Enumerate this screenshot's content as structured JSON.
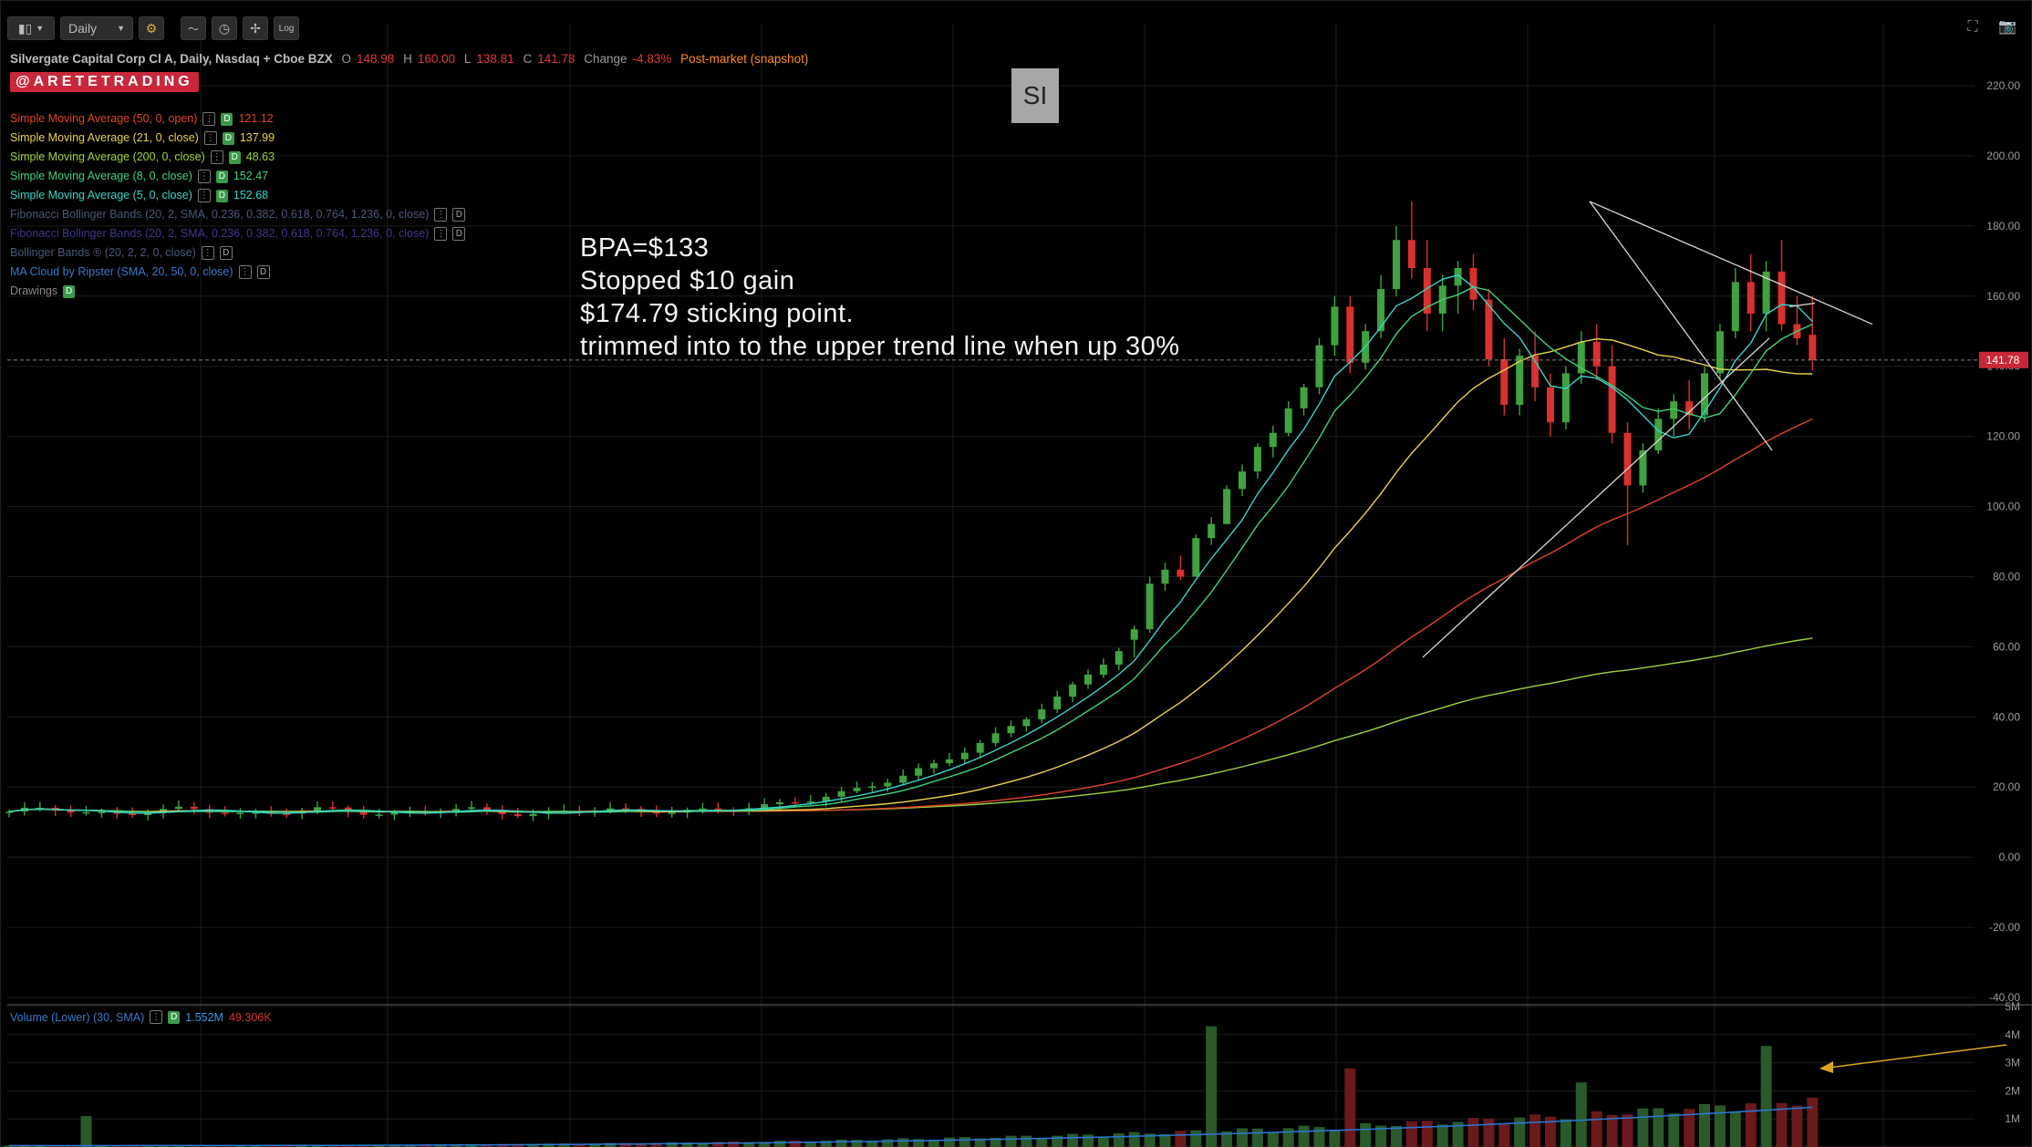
{
  "toolbar": {
    "interval": "Daily",
    "log_label": "Log"
  },
  "header": {
    "title": "Silvergate Capital Corp Cl A, Daily, Nasdaq + Cboe BZX",
    "o_label": "O",
    "o_value": "148.98",
    "h_label": "H",
    "h_value": "160.00",
    "l_label": "L",
    "l_value": "138.81",
    "c_label": "C",
    "c_value": "141.78",
    "change_label": "Change",
    "change_value": "-4.83%",
    "session": "Post-market (snapshot)"
  },
  "watermark": "@ARETETRADING",
  "symbol_box": "SI",
  "studies": [
    {
      "label": "Simple Moving Average (50, 0, open)",
      "value": "121.12",
      "color": "#e0442a",
      "enabled": true
    },
    {
      "label": "Simple Moving Average (21, 0, close)",
      "value": "137.99",
      "color": "#e8d24a",
      "enabled": true
    },
    {
      "label": "Simple Moving Average (200, 0, close)",
      "value": "48.63",
      "color": "#9bd23a",
      "enabled": true
    },
    {
      "label": "Simple Moving Average (8, 0, close)",
      "value": "152.47",
      "color": "#3fd27a",
      "enabled": true
    },
    {
      "label": "Simple Moving Average (5, 0, close)",
      "value": "152.68",
      "color": "#3ad2c8",
      "enabled": true
    },
    {
      "label": "Fibonacci Bollinger Bands (20, 2, SMA, 0.236, 0.382, 0.618, 0.764, 1.236, 0, close)",
      "value": "",
      "color": "#4a5a7a",
      "enabled": false
    },
    {
      "label": "Fibonacci Bollinger Bands (20, 2, SMA, 0.236, 0.382, 0.618, 0.764, 1.236, 0, close)",
      "value": "",
      "color": "#3a3a8a",
      "enabled": false
    },
    {
      "label": "Bollinger Bands ® (20, 2, 2, 0, close)",
      "value": "",
      "color": "#4a5a7a",
      "enabled": false
    },
    {
      "label": "MA Cloud by Ripster (SMA, 20, 50, 0, close)",
      "value": "",
      "color": "#3a7ac8",
      "enabled": false
    },
    {
      "label": "Drawings",
      "value": "",
      "color": "#888888",
      "enabled": true
    }
  ],
  "notes": [
    "BPA=$133",
    "Stopped $10 gain",
    "$174.79 sticking point.",
    "trimmed into to the upper trend line when up 30%"
  ],
  "volume_study": {
    "label": "Volume (Lower) (30, SMA)",
    "value1": "1.552M",
    "value2": "49.306K"
  },
  "last_price_tag": "141.78",
  "colors": {
    "up": "#3fa33f",
    "down": "#d93030",
    "price_tag": "#c8283a",
    "annotation_arrow": "#d9a520"
  },
  "chart_data": {
    "type": "candlestick",
    "price_axis": {
      "range": [
        -40,
        220
      ],
      "ticks": [
        "220.00",
        "200.00",
        "180.00",
        "160.00",
        "140.00",
        "120.00",
        "100.00",
        "80.00",
        "60.00",
        "40.00",
        "20.00",
        "0.00",
        "-20.00",
        "-40.00"
      ]
    },
    "volume_axis": {
      "range": [
        0,
        5
      ],
      "unit": "M",
      "ticks": [
        "5M",
        "4M",
        "3M",
        "2M",
        "1M"
      ]
    },
    "last_close": 141.78,
    "recent_candles": [
      {
        "o": 62,
        "h": 66,
        "l": 57,
        "c": 65
      },
      {
        "o": 65,
        "h": 80,
        "l": 64,
        "c": 78
      },
      {
        "o": 78,
        "h": 84,
        "l": 76,
        "c": 82
      },
      {
        "o": 82,
        "h": 86,
        "l": 79,
        "c": 80
      },
      {
        "o": 80,
        "h": 92,
        "l": 80,
        "c": 91
      },
      {
        "o": 91,
        "h": 97,
        "l": 89,
        "c": 95
      },
      {
        "o": 95,
        "h": 106,
        "l": 95,
        "c": 105
      },
      {
        "o": 105,
        "h": 112,
        "l": 103,
        "c": 110
      },
      {
        "o": 110,
        "h": 118,
        "l": 108,
        "c": 117
      },
      {
        "o": 117,
        "h": 123,
        "l": 114,
        "c": 121
      },
      {
        "o": 121,
        "h": 130,
        "l": 120,
        "c": 128
      },
      {
        "o": 128,
        "h": 135,
        "l": 126,
        "c": 134
      },
      {
        "o": 134,
        "h": 148,
        "l": 132,
        "c": 146
      },
      {
        "o": 146,
        "h": 160,
        "l": 143,
        "c": 157
      },
      {
        "o": 157,
        "h": 160,
        "l": 138,
        "c": 141
      },
      {
        "o": 141,
        "h": 152,
        "l": 139,
        "c": 150
      },
      {
        "o": 150,
        "h": 166,
        "l": 148,
        "c": 162
      },
      {
        "o": 162,
        "h": 180,
        "l": 160,
        "c": 176
      },
      {
        "o": 176,
        "h": 187,
        "l": 165,
        "c": 168
      },
      {
        "o": 168,
        "h": 176,
        "l": 150,
        "c": 155
      },
      {
        "o": 155,
        "h": 166,
        "l": 150,
        "c": 163
      },
      {
        "o": 163,
        "h": 170,
        "l": 155,
        "c": 168
      },
      {
        "o": 168,
        "h": 172,
        "l": 156,
        "c": 159
      },
      {
        "o": 159,
        "h": 162,
        "l": 140,
        "c": 142
      },
      {
        "o": 142,
        "h": 148,
        "l": 126,
        "c": 129
      },
      {
        "o": 129,
        "h": 145,
        "l": 126,
        "c": 143
      },
      {
        "o": 143,
        "h": 150,
        "l": 130,
        "c": 134
      },
      {
        "o": 134,
        "h": 138,
        "l": 120,
        "c": 124
      },
      {
        "o": 124,
        "h": 140,
        "l": 122,
        "c": 138
      },
      {
        "o": 138,
        "h": 150,
        "l": 135,
        "c": 147
      },
      {
        "o": 147,
        "h": 152,
        "l": 136,
        "c": 140
      },
      {
        "o": 140,
        "h": 146,
        "l": 118,
        "c": 121
      },
      {
        "o": 121,
        "h": 124,
        "l": 89,
        "c": 106
      },
      {
        "o": 106,
        "h": 118,
        "l": 104,
        "c": 116
      },
      {
        "o": 116,
        "h": 128,
        "l": 115,
        "c": 125
      },
      {
        "o": 125,
        "h": 132,
        "l": 120,
        "c": 130
      },
      {
        "o": 130,
        "h": 136,
        "l": 122,
        "c": 126
      },
      {
        "o": 126,
        "h": 140,
        "l": 124,
        "c": 138
      },
      {
        "o": 138,
        "h": 152,
        "l": 136,
        "c": 150
      },
      {
        "o": 150,
        "h": 168,
        "l": 148,
        "c": 164
      },
      {
        "o": 164,
        "h": 172,
        "l": 150,
        "c": 155
      },
      {
        "o": 155,
        "h": 170,
        "l": 150,
        "c": 167
      },
      {
        "o": 167,
        "h": 176,
        "l": 150,
        "c": 152
      },
      {
        "o": 152,
        "h": 160,
        "l": 146,
        "c": 148
      },
      {
        "o": 148.98,
        "h": 160,
        "l": 138.81,
        "c": 141.78
      }
    ],
    "moving_averages": [
      {
        "name": "SMA 50",
        "value": 121.12
      },
      {
        "name": "SMA 21",
        "value": 137.99
      },
      {
        "name": "SMA 200",
        "value": 48.63
      },
      {
        "name": "SMA 8",
        "value": 152.47
      },
      {
        "name": "SMA 5",
        "value": 152.68
      }
    ],
    "trend_lines": [
      {
        "name": "upper trend line",
        "from": {
          "price": 187
        },
        "to": {
          "price": 152
        }
      },
      {
        "name": "descending support",
        "from": {
          "price": 187
        },
        "to": {
          "price": 116
        }
      },
      {
        "name": "ascending trend line",
        "from": {
          "price": 57
        },
        "to": {
          "price": 148
        }
      },
      {
        "name": "upper right trend line",
        "from": {
          "price": 157
        },
        "to": {
          "price": 158
        }
      }
    ]
  }
}
